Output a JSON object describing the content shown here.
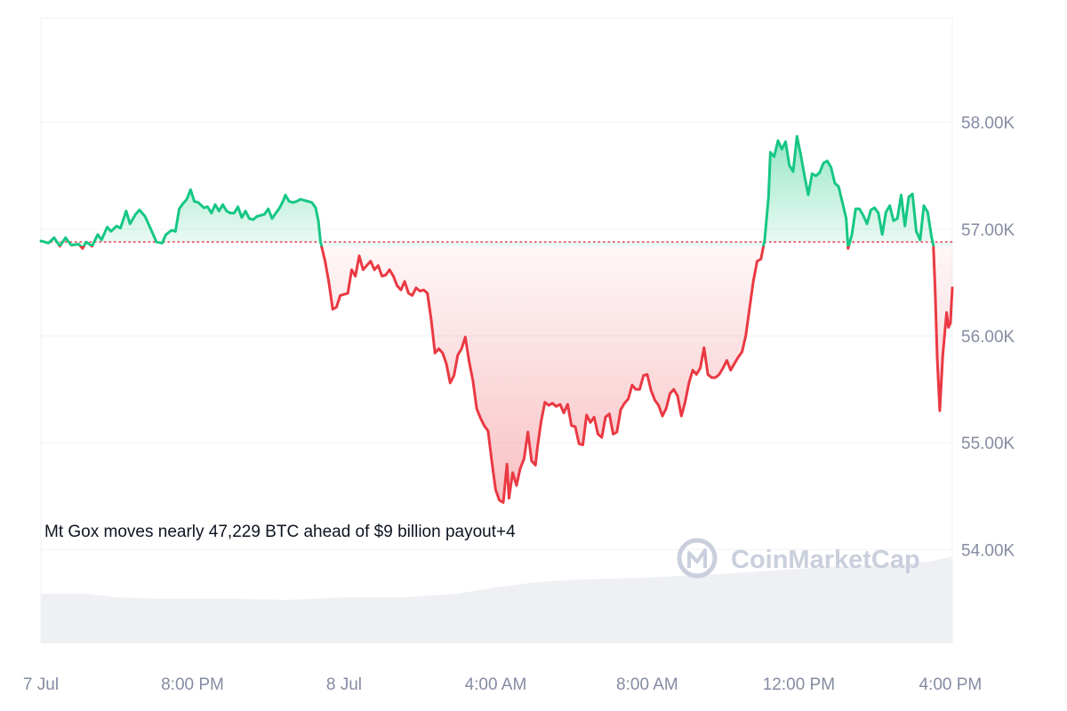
{
  "chart_data": {
    "type": "area",
    "baseline": 56880,
    "y_ticks": [
      "58.00K",
      "57.00K",
      "56.00K",
      "55.00K",
      "54.00K"
    ],
    "y_tick_values": [
      58000,
      57000,
      56000,
      55000,
      54000
    ],
    "x_ticks": [
      "7 Jul",
      "8:00 PM",
      "8 Jul",
      "4:00 AM",
      "8:00 AM",
      "12:00 PM",
      "4:00 PM"
    ],
    "x_tick_hours": [
      0,
      4,
      8,
      12,
      16,
      20,
      24
    ],
    "x_range_hours": [
      0,
      24.05
    ],
    "y_range": [
      53120,
      58980
    ],
    "colors": {
      "above": "#16c784",
      "below": "#ea3943",
      "baseline": "#ea3943"
    },
    "price_series": [
      [
        0.0,
        56890
      ],
      [
        0.2,
        56870
      ],
      [
        0.35,
        56920
      ],
      [
        0.5,
        56840
      ],
      [
        0.65,
        56920
      ],
      [
        0.8,
        56850
      ],
      [
        1.0,
        56860
      ],
      [
        1.1,
        56820
      ],
      [
        1.2,
        56880
      ],
      [
        1.35,
        56840
      ],
      [
        1.5,
        56950
      ],
      [
        1.6,
        56900
      ],
      [
        1.75,
        57020
      ],
      [
        1.85,
        56980
      ],
      [
        2.0,
        57030
      ],
      [
        2.1,
        57010
      ],
      [
        2.25,
        57170
      ],
      [
        2.35,
        57050
      ],
      [
        2.5,
        57140
      ],
      [
        2.6,
        57180
      ],
      [
        2.75,
        57120
      ],
      [
        2.9,
        57000
      ],
      [
        3.05,
        56880
      ],
      [
        3.2,
        56870
      ],
      [
        3.3,
        56950
      ],
      [
        3.45,
        56990
      ],
      [
        3.55,
        56980
      ],
      [
        3.65,
        57190
      ],
      [
        3.75,
        57240
      ],
      [
        3.85,
        57280
      ],
      [
        3.95,
        57370
      ],
      [
        4.05,
        57260
      ],
      [
        4.15,
        57250
      ],
      [
        4.3,
        57200
      ],
      [
        4.4,
        57210
      ],
      [
        4.5,
        57150
      ],
      [
        4.6,
        57230
      ],
      [
        4.7,
        57170
      ],
      [
        4.8,
        57230
      ],
      [
        4.9,
        57170
      ],
      [
        5.0,
        57150
      ],
      [
        5.1,
        57150
      ],
      [
        5.2,
        57210
      ],
      [
        5.3,
        57110
      ],
      [
        5.4,
        57170
      ],
      [
        5.5,
        57100
      ],
      [
        5.6,
        57090
      ],
      [
        5.7,
        57120
      ],
      [
        5.8,
        57130
      ],
      [
        5.9,
        57140
      ],
      [
        6.0,
        57190
      ],
      [
        6.1,
        57100
      ],
      [
        6.2,
        57150
      ],
      [
        6.3,
        57200
      ],
      [
        6.4,
        57270
      ],
      [
        6.45,
        57320
      ],
      [
        6.55,
        57260
      ],
      [
        6.65,
        57250
      ],
      [
        6.75,
        57260
      ],
      [
        6.85,
        57280
      ],
      [
        6.95,
        57270
      ],
      [
        7.05,
        57260
      ],
      [
        7.15,
        57250
      ],
      [
        7.25,
        57200
      ],
      [
        7.32,
        57080
      ],
      [
        7.38,
        56880
      ],
      [
        7.5,
        56700
      ],
      [
        7.6,
        56500
      ],
      [
        7.7,
        56250
      ],
      [
        7.8,
        56270
      ],
      [
        7.9,
        56380
      ],
      [
        8.0,
        56390
      ],
      [
        8.1,
        56400
      ],
      [
        8.2,
        56620
      ],
      [
        8.3,
        56560
      ],
      [
        8.4,
        56750
      ],
      [
        8.5,
        56620
      ],
      [
        8.6,
        56660
      ],
      [
        8.7,
        56700
      ],
      [
        8.8,
        56620
      ],
      [
        8.9,
        56660
      ],
      [
        9.0,
        56560
      ],
      [
        9.1,
        56570
      ],
      [
        9.2,
        56620
      ],
      [
        9.3,
        56560
      ],
      [
        9.4,
        56470
      ],
      [
        9.5,
        56430
      ],
      [
        9.6,
        56510
      ],
      [
        9.7,
        56400
      ],
      [
        9.8,
        56380
      ],
      [
        9.9,
        56450
      ],
      [
        10.0,
        56420
      ],
      [
        10.1,
        56430
      ],
      [
        10.2,
        56400
      ],
      [
        10.3,
        56150
      ],
      [
        10.4,
        55840
      ],
      [
        10.5,
        55880
      ],
      [
        10.6,
        55840
      ],
      [
        10.7,
        55740
      ],
      [
        10.8,
        55560
      ],
      [
        10.9,
        55630
      ],
      [
        11.0,
        55820
      ],
      [
        11.1,
        55880
      ],
      [
        11.2,
        55990
      ],
      [
        11.3,
        55760
      ],
      [
        11.4,
        55580
      ],
      [
        11.5,
        55320
      ],
      [
        11.6,
        55230
      ],
      [
        11.7,
        55160
      ],
      [
        11.8,
        55110
      ],
      [
        11.9,
        54820
      ],
      [
        12.0,
        54560
      ],
      [
        12.1,
        54460
      ],
      [
        12.2,
        54440
      ],
      [
        12.3,
        54800
      ],
      [
        12.35,
        54480
      ],
      [
        12.45,
        54720
      ],
      [
        12.55,
        54600
      ],
      [
        12.65,
        54760
      ],
      [
        12.75,
        54850
      ],
      [
        12.85,
        55100
      ],
      [
        12.95,
        54830
      ],
      [
        13.05,
        54790
      ],
      [
        13.1,
        54950
      ],
      [
        13.2,
        55200
      ],
      [
        13.3,
        55380
      ],
      [
        13.4,
        55350
      ],
      [
        13.5,
        55370
      ],
      [
        13.6,
        55340
      ],
      [
        13.7,
        55360
      ],
      [
        13.8,
        55280
      ],
      [
        13.9,
        55360
      ],
      [
        14.0,
        55160
      ],
      [
        14.1,
        55150
      ],
      [
        14.2,
        54990
      ],
      [
        14.3,
        54980
      ],
      [
        14.4,
        55260
      ],
      [
        14.5,
        55190
      ],
      [
        14.6,
        55240
      ],
      [
        14.7,
        55080
      ],
      [
        14.8,
        55050
      ],
      [
        14.9,
        55240
      ],
      [
        15.0,
        55270
      ],
      [
        15.1,
        55080
      ],
      [
        15.2,
        55100
      ],
      [
        15.3,
        55310
      ],
      [
        15.4,
        55370
      ],
      [
        15.5,
        55410
      ],
      [
        15.6,
        55540
      ],
      [
        15.7,
        55500
      ],
      [
        15.8,
        55500
      ],
      [
        15.9,
        55630
      ],
      [
        16.0,
        55640
      ],
      [
        16.1,
        55490
      ],
      [
        16.2,
        55400
      ],
      [
        16.3,
        55350
      ],
      [
        16.4,
        55250
      ],
      [
        16.5,
        55320
      ],
      [
        16.6,
        55460
      ],
      [
        16.7,
        55500
      ],
      [
        16.8,
        55440
      ],
      [
        16.9,
        55250
      ],
      [
        17.0,
        55380
      ],
      [
        17.1,
        55560
      ],
      [
        17.2,
        55680
      ],
      [
        17.3,
        55640
      ],
      [
        17.4,
        55700
      ],
      [
        17.5,
        55890
      ],
      [
        17.6,
        55640
      ],
      [
        17.7,
        55610
      ],
      [
        17.8,
        55610
      ],
      [
        17.9,
        55640
      ],
      [
        18.0,
        55700
      ],
      [
        18.1,
        55770
      ],
      [
        18.2,
        55680
      ],
      [
        18.3,
        55740
      ],
      [
        18.4,
        55800
      ],
      [
        18.5,
        55850
      ],
      [
        18.6,
        56000
      ],
      [
        18.7,
        56260
      ],
      [
        18.8,
        56510
      ],
      [
        18.9,
        56700
      ],
      [
        19.0,
        56720
      ],
      [
        19.1,
        56900
      ],
      [
        19.2,
        57300
      ],
      [
        19.25,
        57720
      ],
      [
        19.35,
        57680
      ],
      [
        19.45,
        57830
      ],
      [
        19.55,
        57750
      ],
      [
        19.65,
        57820
      ],
      [
        19.75,
        57600
      ],
      [
        19.85,
        57540
      ],
      [
        19.95,
        57870
      ],
      [
        20.05,
        57700
      ],
      [
        20.15,
        57500
      ],
      [
        20.25,
        57320
      ],
      [
        20.35,
        57520
      ],
      [
        20.45,
        57500
      ],
      [
        20.55,
        57530
      ],
      [
        20.65,
        57620
      ],
      [
        20.75,
        57640
      ],
      [
        20.85,
        57580
      ],
      [
        20.95,
        57430
      ],
      [
        21.05,
        57400
      ],
      [
        21.15,
        57250
      ],
      [
        21.25,
        57100
      ],
      [
        21.3,
        56820
      ],
      [
        21.4,
        56950
      ],
      [
        21.5,
        57190
      ],
      [
        21.6,
        57190
      ],
      [
        21.7,
        57130
      ],
      [
        21.8,
        57050
      ],
      [
        21.9,
        57180
      ],
      [
        22.0,
        57200
      ],
      [
        22.1,
        57150
      ],
      [
        22.2,
        56950
      ],
      [
        22.3,
        57160
      ],
      [
        22.4,
        57220
      ],
      [
        22.5,
        57080
      ],
      [
        22.6,
        57100
      ],
      [
        22.7,
        57320
      ],
      [
        22.8,
        57030
      ],
      [
        22.9,
        57300
      ],
      [
        23.0,
        57330
      ],
      [
        23.1,
        56980
      ],
      [
        23.2,
        56900
      ],
      [
        23.3,
        57220
      ],
      [
        23.4,
        57160
      ],
      [
        23.5,
        56930
      ],
      [
        23.55,
        56850
      ],
      [
        23.6,
        56410
      ],
      [
        23.65,
        55800
      ],
      [
        23.72,
        55300
      ],
      [
        23.8,
        55820
      ],
      [
        23.9,
        56220
      ],
      [
        23.95,
        56080
      ],
      [
        24.0,
        56120
      ],
      [
        24.05,
        56450
      ]
    ],
    "volume_relative": [
      [
        0,
        0.4
      ],
      [
        1.2,
        0.4
      ],
      [
        2.0,
        0.37
      ],
      [
        3.0,
        0.36
      ],
      [
        5.0,
        0.36
      ],
      [
        6.5,
        0.35
      ],
      [
        8.0,
        0.37
      ],
      [
        9.5,
        0.37
      ],
      [
        11.0,
        0.4
      ],
      [
        12.0,
        0.45
      ],
      [
        13.0,
        0.49
      ],
      [
        14.0,
        0.51
      ],
      [
        16.0,
        0.53
      ],
      [
        18.0,
        0.56
      ],
      [
        19.5,
        0.59
      ],
      [
        21.0,
        0.62
      ],
      [
        22.5,
        0.63
      ],
      [
        23.5,
        0.66
      ],
      [
        24.05,
        0.7
      ]
    ],
    "news": "Mt Gox moves nearly 47,229 BTC ahead of $9 billion payout+4",
    "watermark": "CoinMarketCap"
  }
}
